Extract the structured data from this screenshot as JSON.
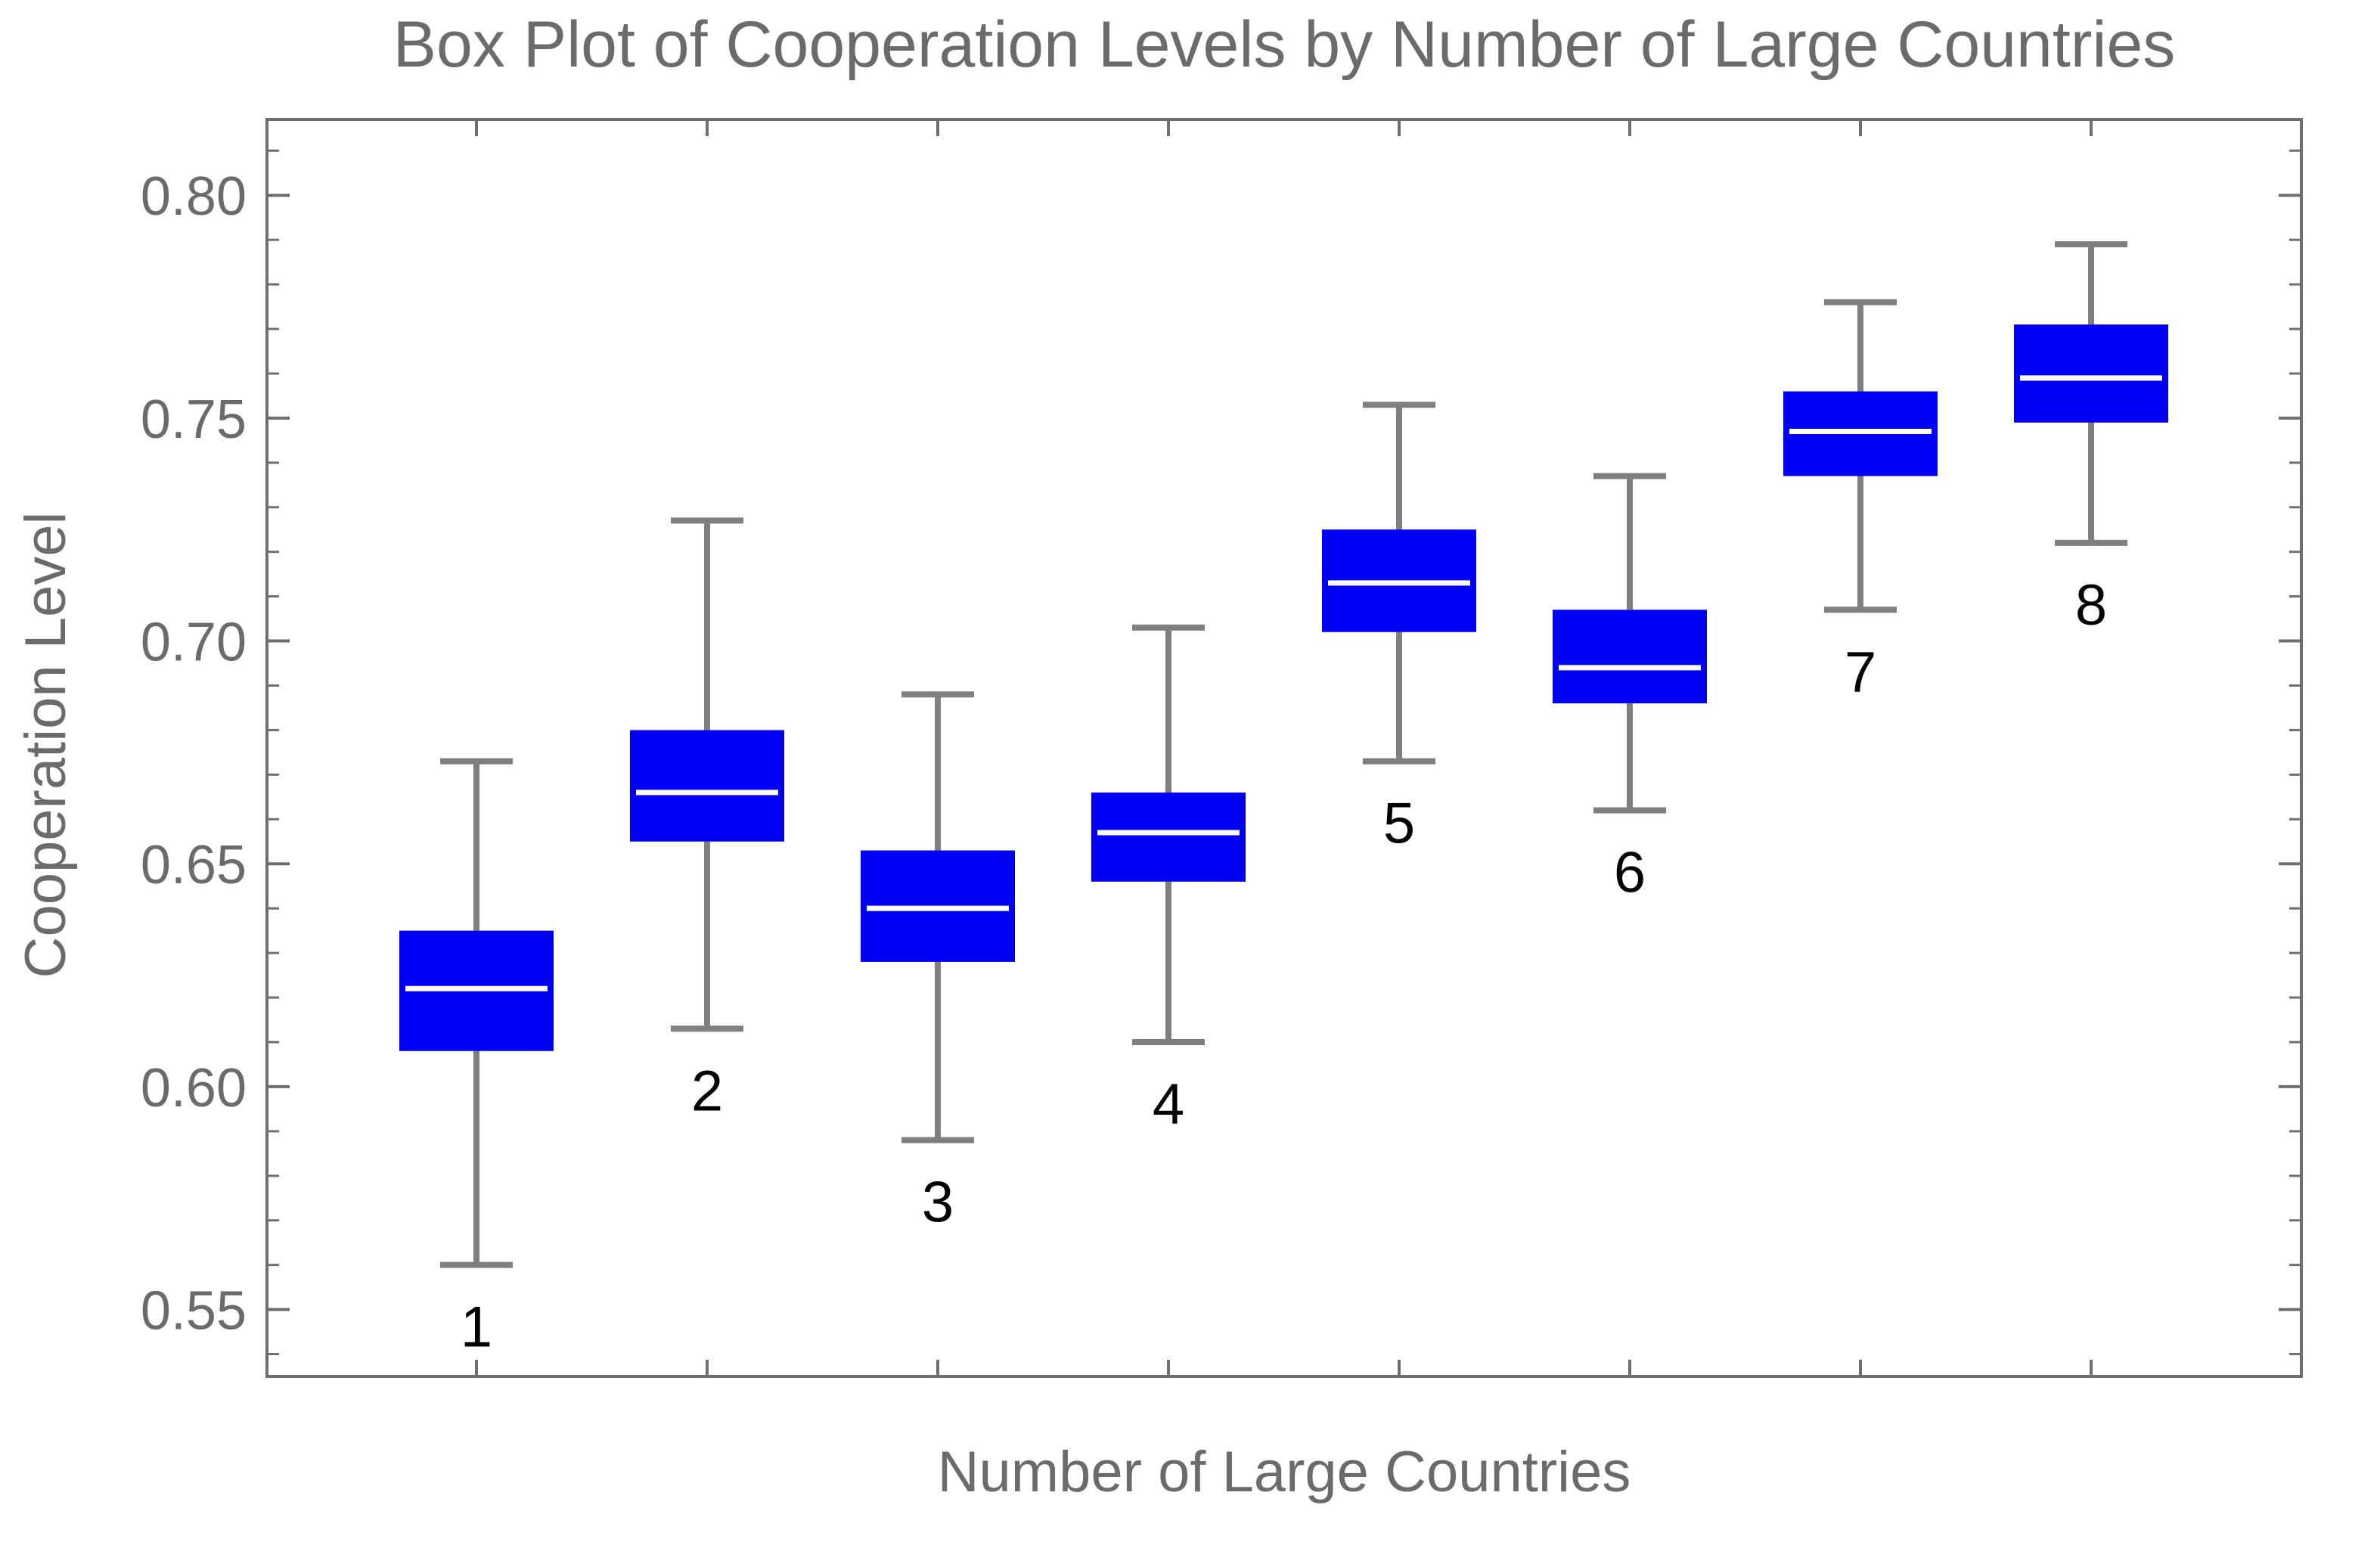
{
  "chart_data": {
    "type": "box",
    "title": "Box Plot of Cooperation Levels by Number of Large Countries",
    "xlabel": "Number of Large Countries",
    "ylabel": "Cooperation Level",
    "ylim": [
      0.535,
      0.817
    ],
    "yticks": [
      "0.55",
      "0.60",
      "0.65",
      "0.70",
      "0.75",
      "0.80"
    ],
    "grid": false,
    "colors": {
      "box": "#0000f5",
      "median": "#ffffff",
      "whisker": "#7f7f7f",
      "axis": "#6e6e6e",
      "label": "#000000"
    },
    "boxes": [
      {
        "label": "1",
        "min": 0.56,
        "q1": 0.608,
        "median": 0.622,
        "q3": 0.635,
        "max": 0.673
      },
      {
        "label": "2",
        "min": 0.613,
        "q1": 0.655,
        "median": 0.666,
        "q3": 0.68,
        "max": 0.727
      },
      {
        "label": "3",
        "min": 0.588,
        "q1": 0.628,
        "median": 0.64,
        "q3": 0.653,
        "max": 0.688
      },
      {
        "label": "4",
        "min": 0.61,
        "q1": 0.646,
        "median": 0.657,
        "q3": 0.666,
        "max": 0.703
      },
      {
        "label": "5",
        "min": 0.673,
        "q1": 0.702,
        "median": 0.713,
        "q3": 0.725,
        "max": 0.753
      },
      {
        "label": "6",
        "min": 0.662,
        "q1": 0.686,
        "median": 0.694,
        "q3": 0.707,
        "max": 0.737
      },
      {
        "label": "7",
        "min": 0.707,
        "q1": 0.737,
        "median": 0.747,
        "q3": 0.756,
        "max": 0.776
      },
      {
        "label": "8",
        "min": 0.722,
        "q1": 0.749,
        "median": 0.759,
        "q3": 0.771,
        "max": 0.789
      }
    ]
  }
}
